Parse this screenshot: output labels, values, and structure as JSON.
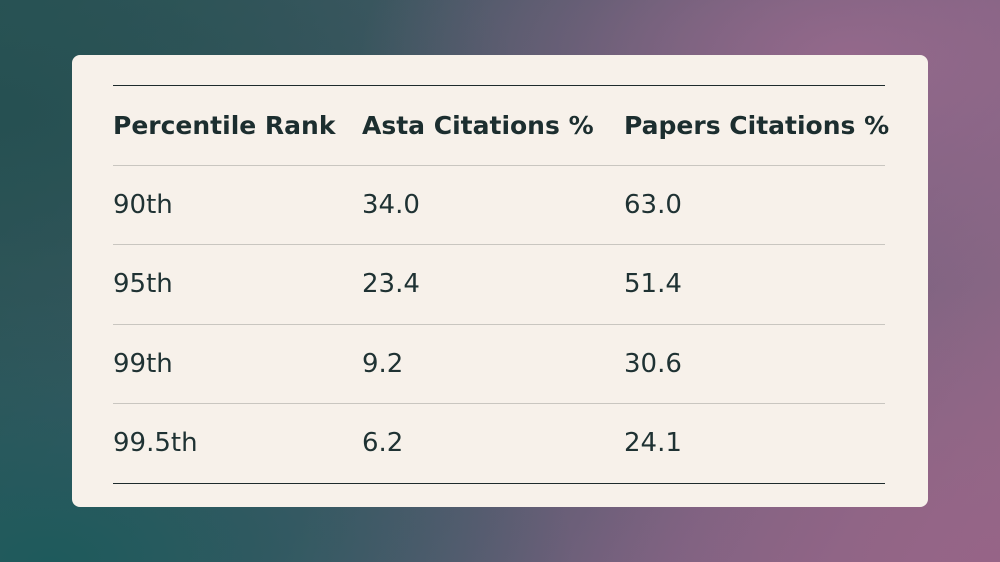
{
  "chart_data": {
    "type": "table",
    "columns": [
      "Percentile Rank",
      "Asta Citations %",
      "Papers Citations %"
    ],
    "rows": [
      [
        "90th",
        "34.0",
        "63.0"
      ],
      [
        "95th",
        "23.4",
        "51.4"
      ],
      [
        "99th",
        "9.2",
        "30.6"
      ],
      [
        "99.5th",
        "6.2",
        "24.1"
      ]
    ]
  }
}
